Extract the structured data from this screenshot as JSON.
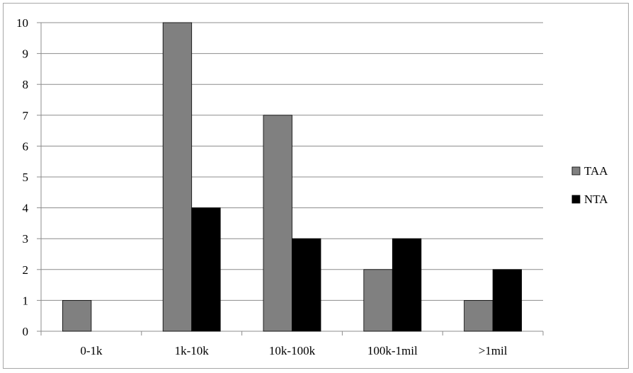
{
  "chart_data": {
    "type": "bar",
    "title": "",
    "xlabel": "",
    "ylabel": "",
    "categories": [
      "0-1k",
      "1k-10k",
      "10k-100k",
      "100k-1mil",
      ">1mil"
    ],
    "series": [
      {
        "name": "TAA",
        "values": [
          1,
          10,
          7,
          2,
          1
        ],
        "color": "#808080"
      },
      {
        "name": "NTA",
        "values": [
          0,
          4,
          3,
          3,
          2
        ],
        "color": "#000000"
      }
    ],
    "ylim": [
      0,
      10
    ],
    "yticks": [
      0,
      1,
      2,
      3,
      4,
      5,
      6,
      7,
      8,
      9,
      10
    ],
    "grid": true,
    "legend": "right"
  }
}
